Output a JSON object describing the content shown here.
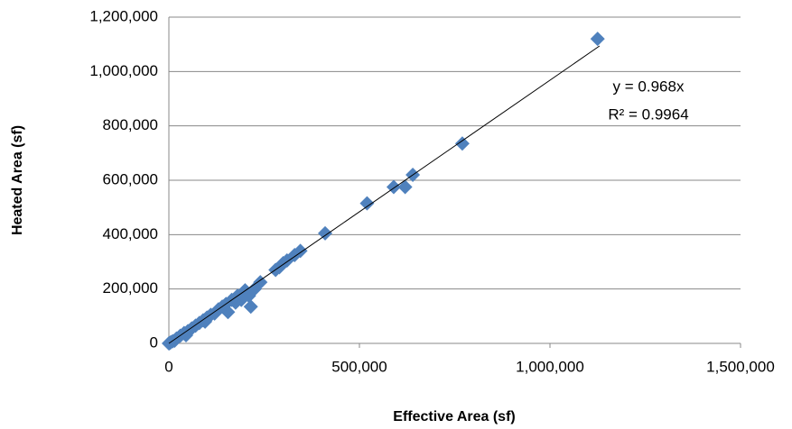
{
  "chart_data": {
    "type": "scatter",
    "x_label": "Effective Area (sf)",
    "y_label": "Heated Area (sf)",
    "color": "#4f81bd",
    "grid": true,
    "xlim": [
      0,
      1500000
    ],
    "ylim": [
      0,
      1200000
    ],
    "xticks": [
      0,
      {
        "value": 500000,
        "label": "500,000"
      },
      {
        "value": 1000000,
        "label": "1,000,000"
      },
      {
        "value": 1500000,
        "label": "1,500,000"
      }
    ],
    "yticks": [
      0,
      {
        "value": 200000,
        "label": "200,000"
      },
      {
        "value": 400000,
        "label": "400,000"
      },
      {
        "value": 600000,
        "label": "600,000"
      },
      {
        "value": 800000,
        "label": "800,000"
      },
      {
        "value": 1000000,
        "label": "1,000,000"
      },
      {
        "value": 1200000,
        "label": "1,200,000"
      }
    ],
    "x": [
      1125000,
      770000,
      640000,
      620000,
      590000,
      520000,
      410000,
      345000,
      330000,
      310000,
      300000,
      290000,
      280000,
      240000,
      225000,
      215000,
      210000,
      200000,
      190000,
      180000,
      175000,
      165000,
      155000,
      150000,
      140000,
      130000,
      120000,
      110000,
      100000,
      95000,
      90000,
      80000,
      70000,
      60000,
      50000,
      45000,
      40000,
      30000,
      20000,
      15000,
      10000,
      5000,
      2000,
      0
    ],
    "y": [
      1120000,
      735000,
      620000,
      575000,
      575000,
      515000,
      405000,
      340000,
      325000,
      305000,
      295000,
      280000,
      270000,
      225000,
      200000,
      135000,
      175000,
      195000,
      160000,
      175000,
      150000,
      160000,
      115000,
      145000,
      135000,
      125000,
      110000,
      105000,
      95000,
      80000,
      85000,
      75000,
      65000,
      55000,
      45000,
      30000,
      38000,
      28000,
      18000,
      10000,
      8000,
      4000,
      1000,
      0
    ],
    "trendline": {
      "equation": "y = 0.968x",
      "r_squared": "R² = 0.9964",
      "slope": 0.968,
      "xrange": [
        0,
        1130000
      ]
    }
  }
}
